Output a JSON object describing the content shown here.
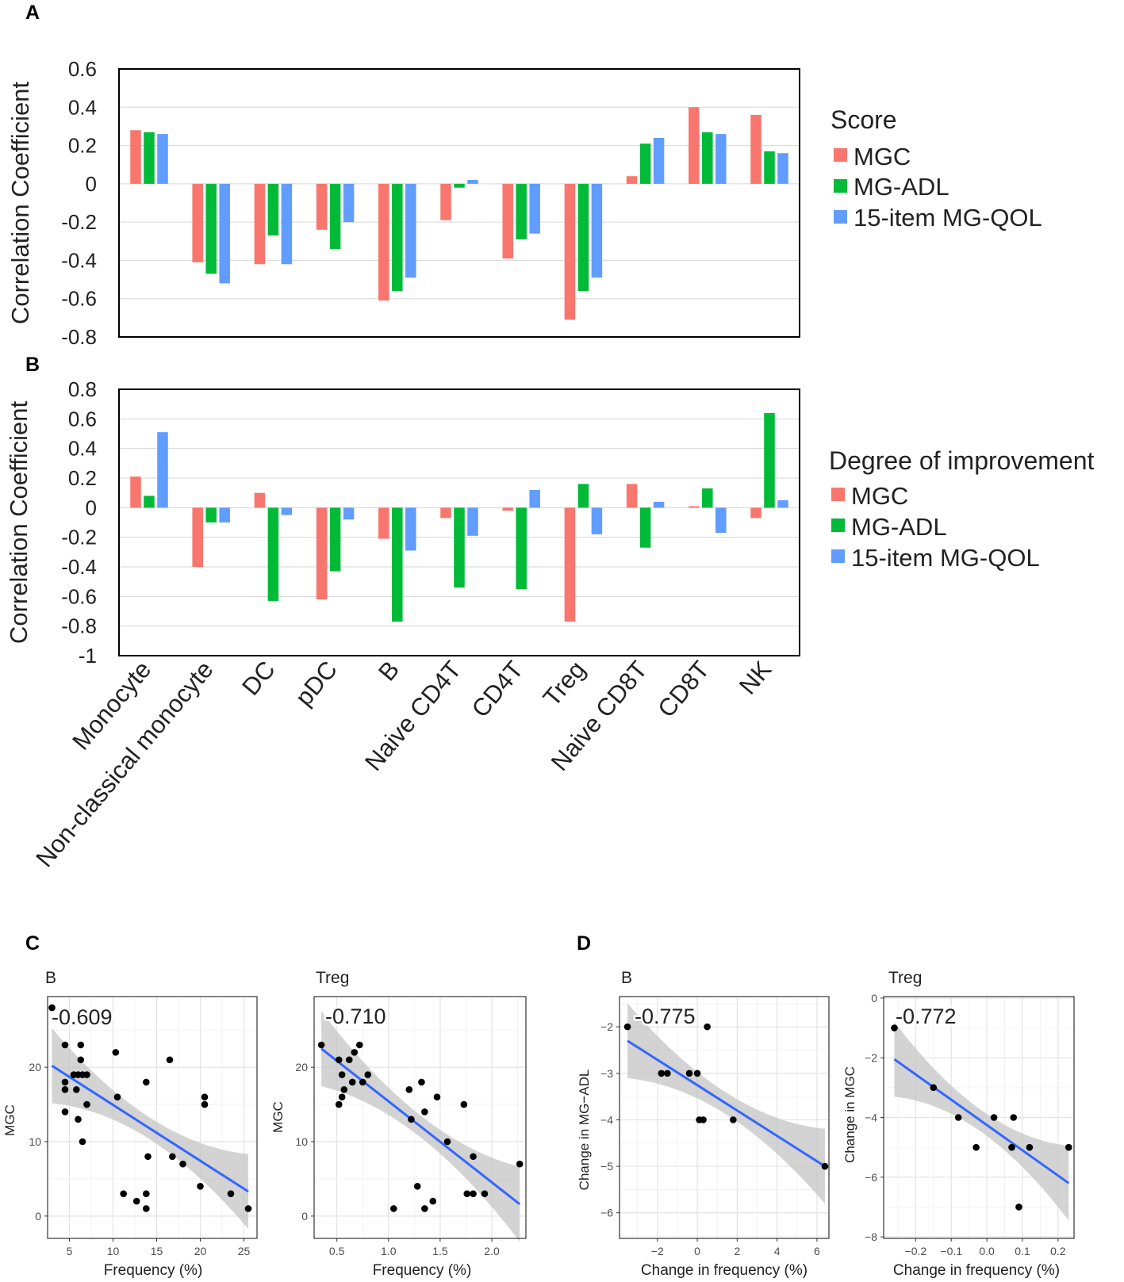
{
  "chart_data": [
    {
      "type": "bar",
      "panel_label": "A",
      "ylabel": "Correlation Coefficient",
      "ylim": [
        -0.8,
        0.6
      ],
      "yticks": [
        "-0.8",
        "-0.6",
        "-0.4",
        "-0.2",
        "0",
        "0.2",
        "0.4",
        "0.6"
      ],
      "grid": true,
      "legend_title": "Score",
      "legend_position": "right",
      "categories": [
        "Monocyte",
        "Non-classical monocyte",
        "DC",
        "pDC",
        "B",
        "Naive CD4T",
        "CD4T",
        "Treg",
        "Naive CD8T",
        "CD8T",
        "NK"
      ],
      "series": [
        {
          "name": "MGC",
          "color": "#F8766D",
          "values": [
            0.28,
            -0.41,
            -0.42,
            -0.24,
            -0.61,
            -0.19,
            -0.39,
            -0.71,
            0.04,
            0.4,
            0.36
          ]
        },
        {
          "name": "MG-ADL",
          "color": "#00BA38",
          "values": [
            0.27,
            -0.47,
            -0.27,
            -0.34,
            -0.56,
            -0.02,
            -0.29,
            -0.56,
            0.21,
            0.27,
            0.17
          ]
        },
        {
          "name": "15-item MG-QOL",
          "color": "#619CFF",
          "values": [
            0.26,
            -0.52,
            -0.42,
            -0.2,
            -0.49,
            0.02,
            -0.26,
            -0.49,
            0.24,
            0.26,
            0.16
          ]
        }
      ]
    },
    {
      "type": "bar",
      "panel_label": "B",
      "ylabel": "Correlation Coefficient",
      "ylim": [
        -1,
        0.8
      ],
      "yticks": [
        "-1",
        "-0.8",
        "-0.6",
        "-0.4",
        "-0.2",
        "0",
        "0.2",
        "0.4",
        "0.6",
        "0.8"
      ],
      "grid": true,
      "legend_title": "Degree of improvement",
      "legend_position": "right",
      "categories": [
        "Monocyte",
        "Non-classical monocyte",
        "DC",
        "pDC",
        "B",
        "Naive CD4T",
        "CD4T",
        "Treg",
        "Naive CD8T",
        "CD8T",
        "NK"
      ],
      "series": [
        {
          "name": "MGC",
          "color": "#F8766D",
          "values": [
            0.21,
            -0.4,
            0.1,
            -0.62,
            -0.21,
            -0.07,
            -0.02,
            -0.77,
            0.16,
            0.01,
            -0.07
          ]
        },
        {
          "name": "MG-ADL",
          "color": "#00BA38",
          "values": [
            0.08,
            -0.1,
            -0.63,
            -0.43,
            -0.77,
            -0.54,
            -0.55,
            0.16,
            -0.27,
            0.13,
            0.64
          ]
        },
        {
          "name": "15-item MG-QOL",
          "color": "#619CFF",
          "values": [
            0.51,
            -0.1,
            -0.05,
            -0.08,
            -0.29,
            -0.19,
            0.12,
            -0.18,
            0.04,
            -0.17,
            0.05
          ]
        }
      ]
    },
    {
      "type": "scatter",
      "panel_label": "C",
      "title": "B",
      "annotation": "-0.609",
      "xlabel": "Frequency (%)",
      "ylabel": "MGC",
      "xlim": [
        2.5,
        26.5
      ],
      "ylim": [
        -3,
        29.5
      ],
      "xticks": [
        5,
        10,
        15,
        20,
        25
      ],
      "yticks": [
        0,
        10,
        20
      ],
      "x": [
        3,
        4.5,
        4.5,
        4.5,
        4.5,
        5.5,
        5.8,
        6,
        6,
        6.3,
        6.3,
        6.5,
        6.5,
        7,
        7,
        10.3,
        10.5,
        11.2,
        12.7,
        13.8,
        13.8,
        13.8,
        14,
        16.5,
        16.8,
        18,
        20,
        20.5,
        20.5,
        23.5,
        25.5
      ],
      "y": [
        28,
        23,
        18,
        17,
        14,
        19,
        17,
        19,
        13,
        23,
        21,
        19,
        10,
        19,
        15,
        22,
        16,
        3,
        2,
        18,
        3,
        1,
        8,
        21,
        8,
        7,
        4,
        16,
        15,
        3,
        1
      ],
      "fit": {
        "x": [
          3,
          25.5
        ],
        "y": [
          20.2,
          3.3
        ]
      }
    },
    {
      "type": "scatter",
      "panel_label": "",
      "title": "Treg",
      "annotation": "-0.710",
      "xlabel": "Frequency (%)",
      "ylabel": "MGC",
      "xlim": [
        0.28,
        2.33
      ],
      "ylim": [
        -3,
        29.5
      ],
      "xticks": [
        0.5,
        1.0,
        1.5,
        2.0
      ],
      "xtick_labels": [
        "0.5",
        "1.0",
        "1.5",
        "2.0"
      ],
      "yticks": [
        0,
        10,
        20
      ],
      "x": [
        0.35,
        0.52,
        0.52,
        0.55,
        0.55,
        0.57,
        0.62,
        0.65,
        0.67,
        0.72,
        0.75,
        0.8,
        1.05,
        1.2,
        1.22,
        1.28,
        1.32,
        1.35,
        1.35,
        1.43,
        1.47,
        1.57,
        1.73,
        1.76,
        1.82,
        1.82,
        1.93,
        2.27
      ],
      "y": [
        23,
        21,
        15,
        19,
        16,
        17,
        21,
        18,
        22,
        23,
        18,
        19,
        1,
        17,
        13,
        4,
        18,
        14,
        1,
        2,
        16,
        10,
        15,
        3,
        8,
        3,
        3,
        7
      ],
      "fit": {
        "x": [
          0.35,
          2.27
        ],
        "y": [
          22.5,
          1.6
        ]
      }
    },
    {
      "type": "scatter",
      "panel_label": "D",
      "title": "B",
      "annotation": "-0.775",
      "xlabel": "Change in frequency (%)",
      "ylabel": "Change in MG−ADL",
      "xlim": [
        -3.9,
        6.6
      ],
      "ylim": [
        -6.55,
        -1.35
      ],
      "xticks": [
        -2,
        0,
        2,
        4,
        6
      ],
      "xtick_labels": [
        "−2",
        "0",
        "2",
        "4",
        "6"
      ],
      "yticks": [
        -6,
        -5,
        -4,
        -3,
        -2
      ],
      "ytick_labels": [
        "−6",
        "−5",
        "−4",
        "−3",
        "−2"
      ],
      "x": [
        -3.5,
        -1.8,
        -1.5,
        -0.4,
        0,
        0.1,
        0.3,
        0.5,
        1.8,
        6.4
      ],
      "y": [
        -2,
        -3,
        -3,
        -3,
        -3,
        -4,
        -4,
        -2,
        -4,
        -5
      ],
      "fit": {
        "x": [
          -3.5,
          6.4
        ],
        "y": [
          -2.3,
          -5.0
        ]
      }
    },
    {
      "type": "scatter",
      "panel_label": "",
      "title": "Treg",
      "annotation": "-0.772",
      "xlabel": "Change in frequency (%)",
      "ylabel": "Change in MGC",
      "xlim": [
        -0.29,
        0.245
      ],
      "ylim": [
        -8.05,
        0.05
      ],
      "xticks": [
        -0.2,
        -0.1,
        0.0,
        0.1,
        0.2
      ],
      "xtick_labels": [
        "−0.2",
        "−0.1",
        "0.0",
        "0.1",
        "0.2"
      ],
      "yticks": [
        -8,
        -6,
        -4,
        -2,
        0
      ],
      "ytick_labels": [
        "−8",
        "−6",
        "−4",
        "−2",
        "0"
      ],
      "x": [
        -0.26,
        -0.15,
        -0.08,
        -0.03,
        0.02,
        0.07,
        0.075,
        0.09,
        0.12,
        0.23
      ],
      "y": [
        -1,
        -3,
        -4,
        -5,
        -4,
        -5,
        -4,
        -7,
        -5,
        -5
      ],
      "fit": {
        "x": [
          -0.26,
          0.23
        ],
        "y": [
          -2.05,
          -6.2
        ]
      }
    }
  ]
}
